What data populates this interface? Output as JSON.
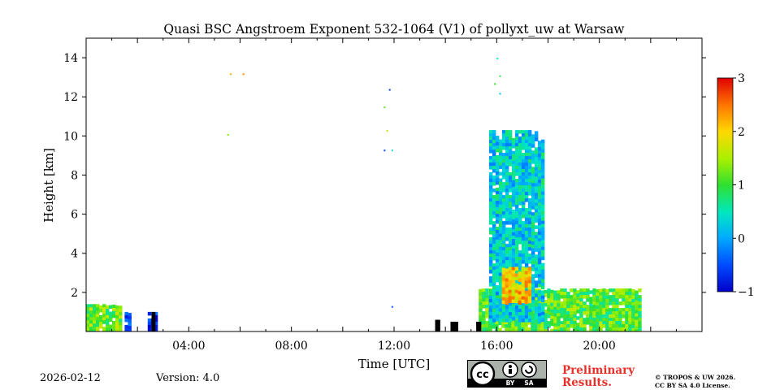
{
  "chart_data": {
    "type": "heatmap",
    "title": "Quasi BSC Angstroem Exponent 532-1064 (V1) of pollyxt_uw at Warsaw",
    "xlabel": "Time [UTC]",
    "ylabel": "Height [km]",
    "xlim_hours": [
      0,
      24
    ],
    "ylim_km": [
      0,
      15
    ],
    "x_ticks": [
      {
        "hours": 4,
        "label": "04:00"
      },
      {
        "hours": 8,
        "label": "08:00"
      },
      {
        "hours": 12,
        "label": "12:00"
      },
      {
        "hours": 16,
        "label": "16:00"
      },
      {
        "hours": 20,
        "label": "20:00"
      }
    ],
    "y_ticks": [
      {
        "km": 2,
        "label": "2"
      },
      {
        "km": 4,
        "label": "4"
      },
      {
        "km": 6,
        "label": "6"
      },
      {
        "km": 8,
        "label": "8"
      },
      {
        "km": 10,
        "label": "10"
      },
      {
        "km": 12,
        "label": "12"
      },
      {
        "km": 14,
        "label": "14"
      }
    ],
    "colorbar": {
      "vmin": -1,
      "vmax": 3,
      "ticks": [
        {
          "value": -1,
          "label": "−1"
        },
        {
          "value": 0,
          "label": "0"
        },
        {
          "value": 1,
          "label": "1"
        },
        {
          "value": 2,
          "label": "2"
        },
        {
          "value": 3,
          "label": "3"
        }
      ],
      "colormap": "jet"
    },
    "regions": [
      {
        "name": "early-aerosol-layer",
        "t0": 0.0,
        "t1": 1.3,
        "h0": 0.0,
        "h1": 1.4,
        "value": 1.2
      },
      {
        "name": "early-blue-strip",
        "t0": 1.5,
        "t1": 1.7,
        "h0": 0.0,
        "h1": 1.0,
        "value": -0.3
      },
      {
        "name": "blue-column-0230",
        "t0": 2.4,
        "t1": 2.7,
        "h0": 0.0,
        "h1": 1.0,
        "value": -0.6
      },
      {
        "name": "afternoon-boundary-layer",
        "t0": 15.3,
        "t1": 21.6,
        "h0": 0.0,
        "h1": 2.2,
        "value": 1.1
      },
      {
        "name": "elevated-aerosol-plume",
        "t0": 15.7,
        "t1": 17.8,
        "h0": 0.6,
        "h1": 10.3,
        "value": 0.3
      },
      {
        "name": "plume-high-ae-core",
        "t0": 16.2,
        "t1": 17.3,
        "h0": 1.5,
        "h1": 3.3,
        "value": 2.1
      }
    ]
  },
  "footer": {
    "date": "2026-02-12",
    "version": "Version: 4.0",
    "preliminary_line1": "Preliminary",
    "preliminary_line2": "Results.",
    "copyright_line1": "© TROPOS & UW 2026.",
    "copyright_line2": "CC BY SA 4.0 License.",
    "license_badge": {
      "cc": "cc",
      "by": "BY",
      "sa": "SA"
    }
  },
  "colors": {
    "nodata": "#ffffff",
    "dark": "#000000",
    "prelim": "#e8302a"
  }
}
